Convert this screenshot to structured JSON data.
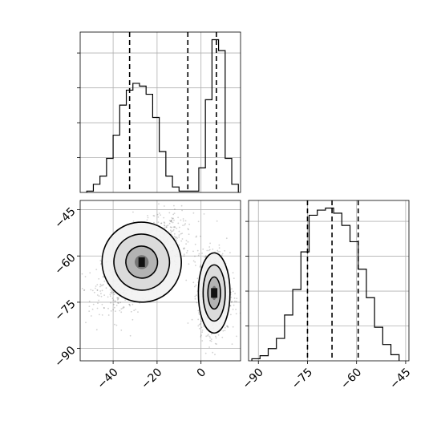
{
  "chart_data": {
    "type": "corner",
    "grid": true,
    "panels": [
      {
        "id": "hist-x",
        "type": "histogram",
        "xlim": [
          -55,
          18
        ],
        "show_xticklabels": false,
        "show_yticklabels": false,
        "bin_edges": [
          -52,
          -49,
          -46,
          -43,
          -40,
          -37,
          -34,
          -31,
          -28,
          -25,
          -22,
          -19,
          -16,
          -13,
          -10,
          -7,
          -4,
          -1,
          2,
          5,
          8,
          11,
          14,
          17
        ],
        "counts": [
          1,
          6,
          12,
          25,
          42,
          64,
          75,
          80,
          78,
          72,
          55,
          30,
          12,
          4,
          1,
          1,
          1,
          18,
          68,
          112,
          104,
          25,
          6
        ],
        "quantiles": [
          -32.5,
          -6.0,
          7.0
        ]
      },
      {
        "id": "hist-y",
        "type": "histogram",
        "xlim": [
          -93,
          -44
        ],
        "xticks": [
          -90,
          -75,
          -60,
          -45
        ],
        "xtick_labels": [
          "−90",
          "−75",
          "−60",
          "−45"
        ],
        "show_yticklabels": false,
        "bin_edges": [
          -92,
          -89.5,
          -87,
          -84.5,
          -82,
          -79.5,
          -77,
          -74.5,
          -72,
          -69.5,
          -67,
          -64.5,
          -62,
          -59.5,
          -57,
          -54.5,
          -52,
          -49.5,
          -47
        ],
        "counts": [
          2,
          5,
          12,
          22,
          45,
          70,
          107,
          143,
          148,
          150,
          145,
          133,
          117,
          90,
          62,
          33,
          16,
          6
        ],
        "quantiles": [
          -75.0,
          -67.5,
          -59.5
        ]
      },
      {
        "id": "joint",
        "type": "scatter-contour",
        "xlim": [
          -55,
          18
        ],
        "ylim": [
          -94,
          -42
        ],
        "xticks": [
          -40,
          -20,
          0
        ],
        "xtick_labels": [
          "−40",
          "−20",
          "0"
        ],
        "yticks": [
          -45,
          -60,
          -75,
          -90
        ],
        "ytick_labels": [
          "−45",
          "−60",
          "−75",
          "−90"
        ],
        "clusters": [
          {
            "center": [
              -27,
              -62
            ],
            "sx": 9,
            "sy": 6.5,
            "rho": 0.55,
            "n": 1500
          },
          {
            "center": [
              6,
              -72
            ],
            "sx": 3.6,
            "sy": 6.5,
            "rho": 0.0,
            "n": 1000
          }
        ],
        "contour_levels": [
          2.0,
          1.4,
          0.8,
          0.35
        ],
        "densest_points": [
          [
            -27,
            -62
          ],
          [
            6,
            -72
          ]
        ]
      }
    ]
  }
}
